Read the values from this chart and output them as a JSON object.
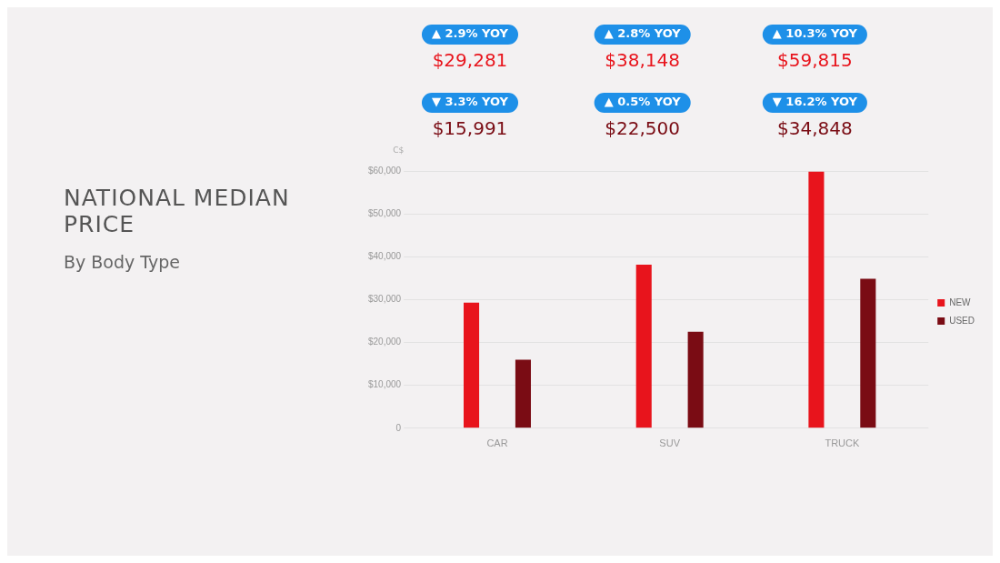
{
  "chart_data": {
    "type": "bar",
    "title": "NATIONAL MEDIAN PRICE",
    "subtitle": "By Body Type",
    "ylabel": "C$",
    "categories": [
      "CAR",
      "SUV",
      "TRUCK"
    ],
    "series": [
      {
        "name": "NEW",
        "color": "#e8141c",
        "values": [
          29281,
          38148,
          59815
        ],
        "value_labels": [
          "$29,281",
          "$38,148",
          "$59,815"
        ]
      },
      {
        "name": "USED",
        "color": "#7a0c14",
        "values": [
          15991,
          22500,
          34848
        ],
        "value_labels": [
          "$15,991",
          "$22,500",
          "$34,848"
        ]
      }
    ],
    "annotations": [
      "▲ 2.9% YOY",
      "▲ 2.8% YOY",
      "▲ 10.3% YOY",
      "▼ 3.3% YOY",
      "▲ 0.5% YOY",
      "▼ 16.2% YOY"
    ],
    "ylim": [
      0,
      60000
    ],
    "yticks": [
      {
        "value": 0,
        "label": "0"
      },
      {
        "value": 10000,
        "label": "$10,000"
      },
      {
        "value": 20000,
        "label": "$20,000"
      },
      {
        "value": 30000,
        "label": "$30,000"
      },
      {
        "value": 40000,
        "label": "$40,000"
      },
      {
        "value": 50000,
        "label": "$50,000"
      },
      {
        "value": 60000,
        "label": "$60,000"
      }
    ],
    "grid": "y",
    "legend": "right"
  }
}
